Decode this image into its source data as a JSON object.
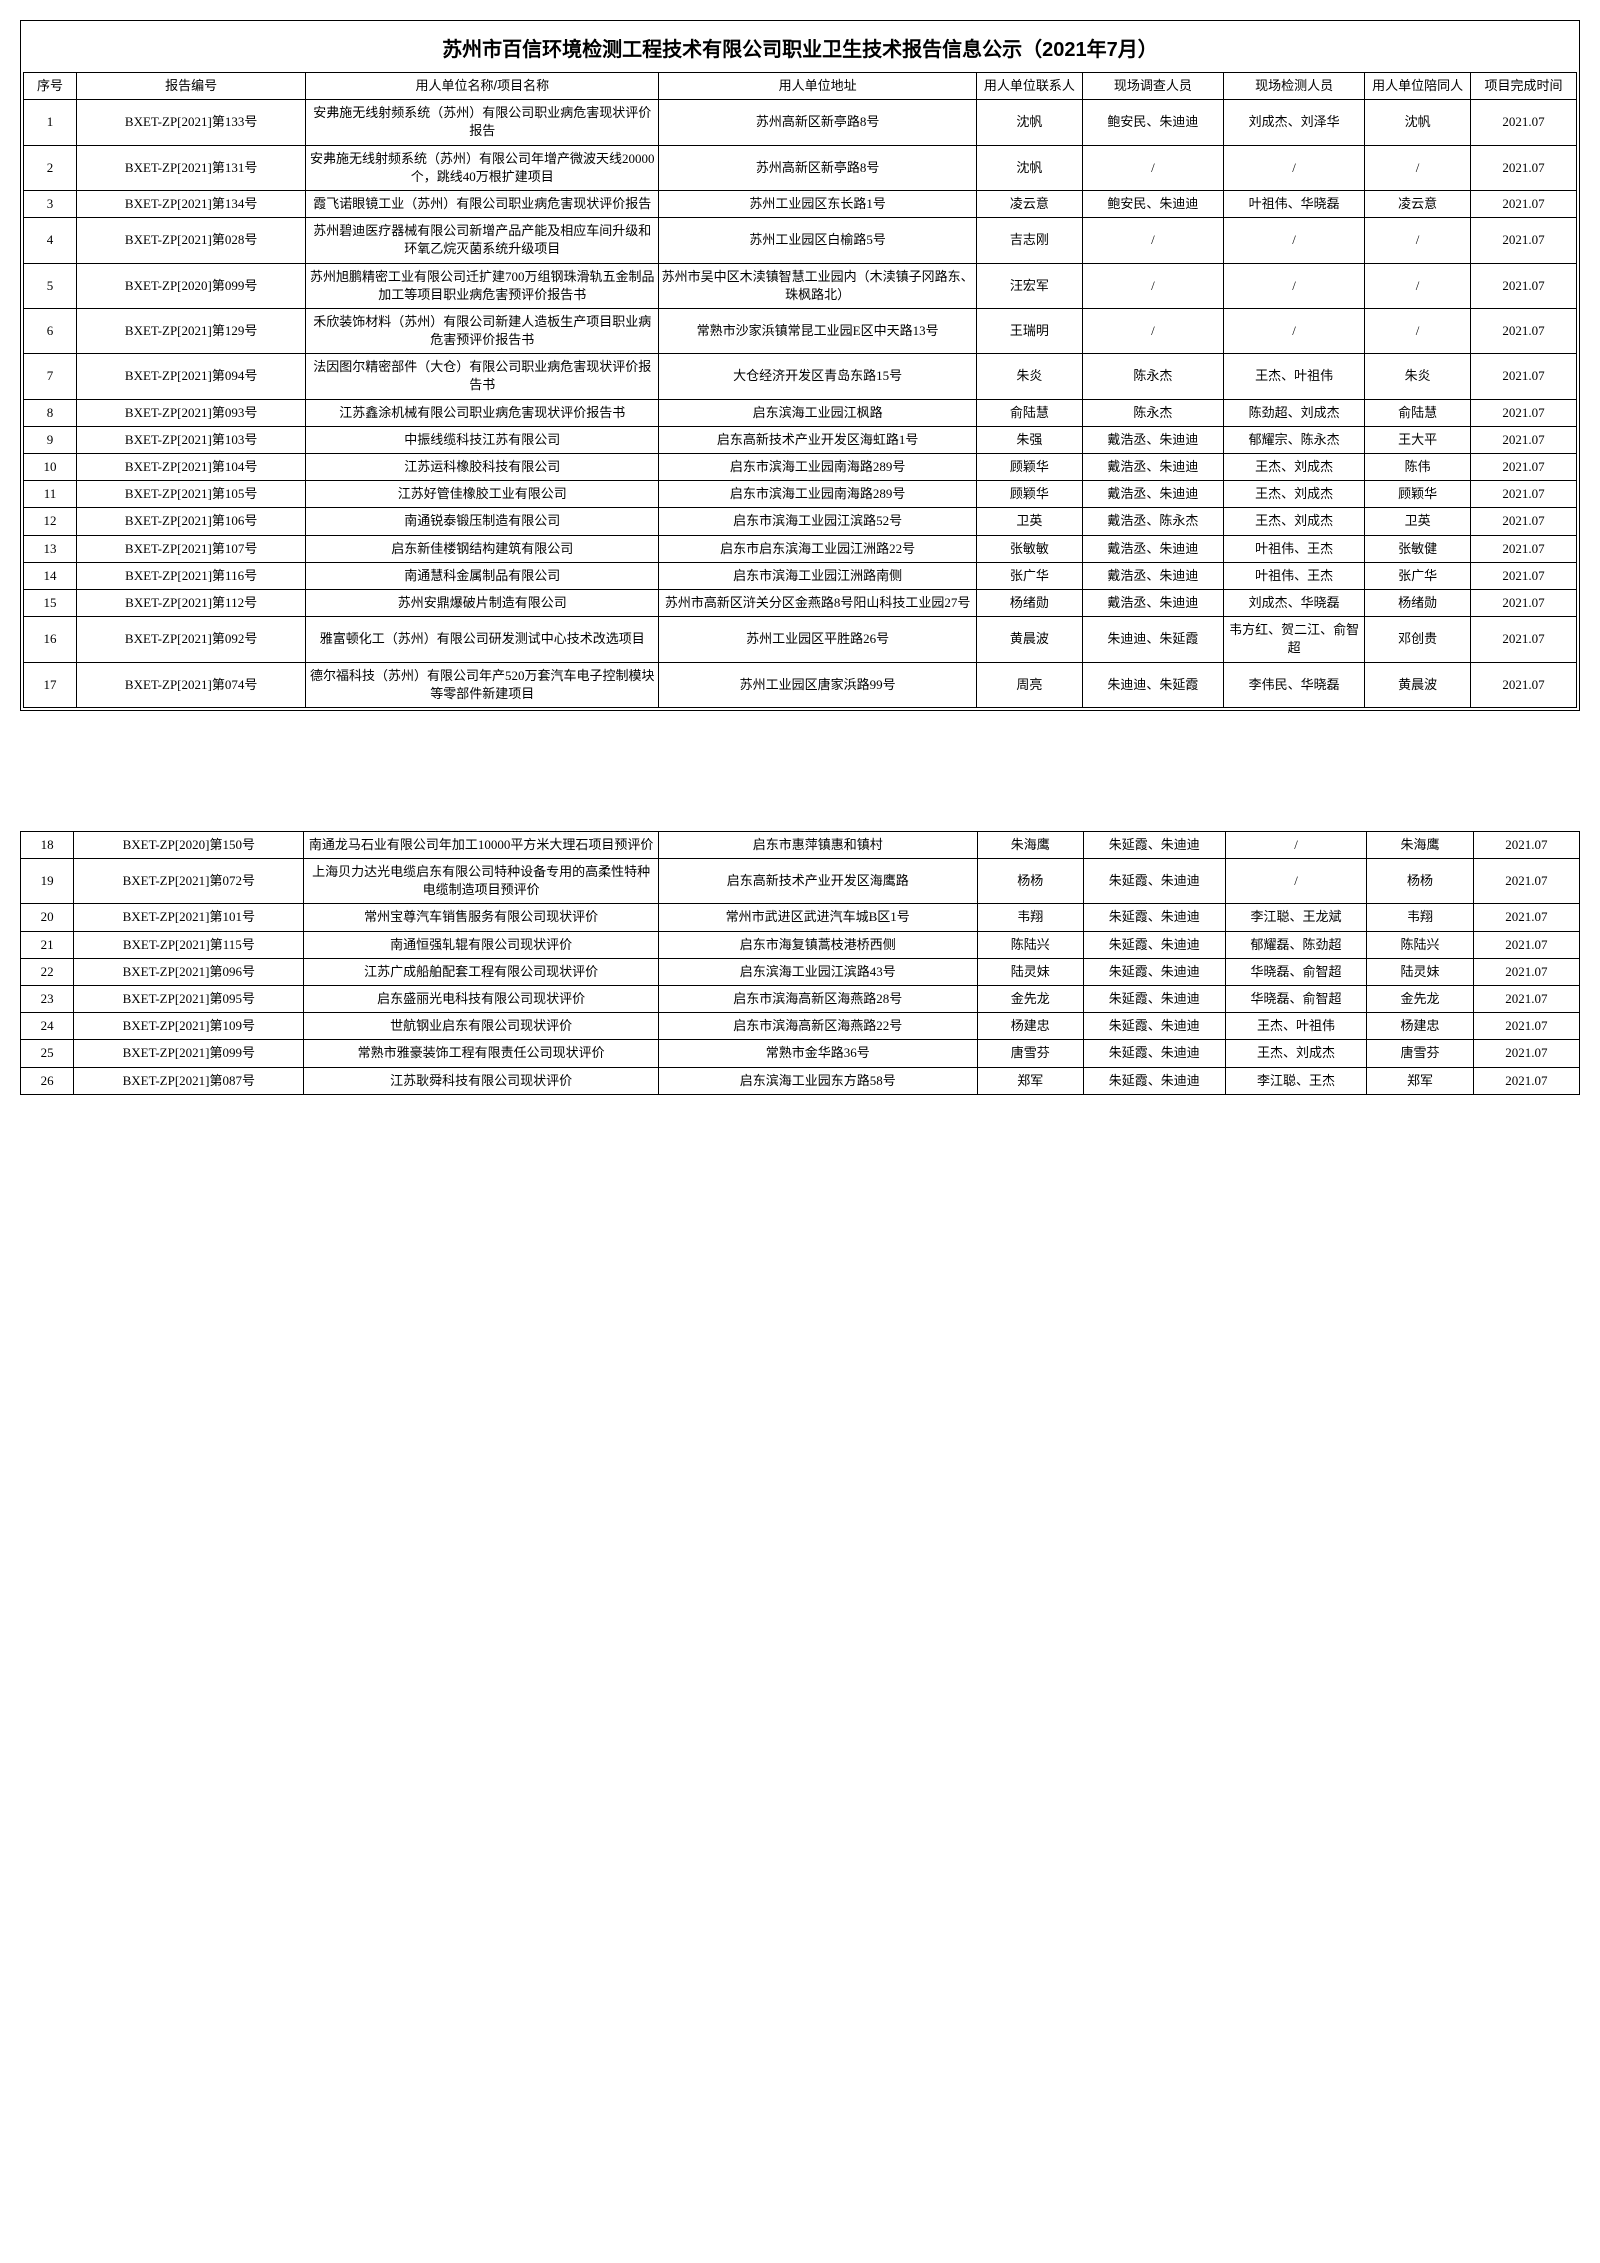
{
  "title": "苏州市百信环境检测工程技术有限公司职业卫生技术报告信息公示（2021年7月）",
  "columns": [
    "序号",
    "报告编号",
    "用人单位名称/项目名称",
    "用人单位地址",
    "用人单位联系人",
    "现场调查人员",
    "现场检测人员",
    "用人单位陪同人",
    "项目完成时间"
  ],
  "section1_rows": [
    {
      "seq": "1",
      "report": "BXET-ZP[2021]第133号",
      "project": "安弗施无线射频系统（苏州）有限公司职业病危害现状评价报告",
      "address": "苏州高新区新亭路8号",
      "contact": "沈帆",
      "survey": "鲍安民、朱迪迪",
      "inspect": "刘成杰、刘泽华",
      "accompany": "沈帆",
      "date": "2021.07"
    },
    {
      "seq": "2",
      "report": "BXET-ZP[2021]第131号",
      "project": "安弗施无线射频系统（苏州）有限公司年增产微波天线20000个，跳线40万根扩建项目",
      "address": "苏州高新区新亭路8号",
      "contact": "沈帆",
      "survey": "/",
      "inspect": "/",
      "accompany": "/",
      "date": "2021.07"
    },
    {
      "seq": "3",
      "report": "BXET-ZP[2021]第134号",
      "project": "霞飞诺眼镜工业（苏州）有限公司职业病危害现状评价报告",
      "address": "苏州工业园区东长路1号",
      "contact": "凌云意",
      "survey": "鲍安民、朱迪迪",
      "inspect": "叶祖伟、华晓磊",
      "accompany": "凌云意",
      "date": "2021.07"
    },
    {
      "seq": "4",
      "report": "BXET-ZP[2021]第028号",
      "project": "苏州碧迪医疗器械有限公司新增产品产能及相应车间升级和环氧乙烷灭菌系统升级项目",
      "address": "苏州工业园区白榆路5号",
      "contact": "吉志刚",
      "survey": "/",
      "inspect": "/",
      "accompany": "/",
      "date": "2021.07"
    },
    {
      "seq": "5",
      "report": "BXET-ZP[2020]第099号",
      "project": "苏州旭鹏精密工业有限公司迁扩建700万组钢珠滑轨五金制品加工等项目职业病危害预评价报告书",
      "address": "苏州市吴中区木渎镇智慧工业园内（木渎镇子冈路东、珠枫路北）",
      "contact": "汪宏军",
      "survey": "/",
      "inspect": "/",
      "accompany": "/",
      "date": "2021.07"
    },
    {
      "seq": "6",
      "report": "BXET-ZP[2021]第129号",
      "project": "禾欣装饰材料（苏州）有限公司新建人造板生产项目职业病危害预评价报告书",
      "address": "常熟市沙家浜镇常昆工业园E区中天路13号",
      "contact": "王瑞明",
      "survey": "/",
      "inspect": "/",
      "accompany": "/",
      "date": "2021.07"
    },
    {
      "seq": "7",
      "report": "BXET-ZP[2021]第094号",
      "project": "法因图尔精密部件（大仓）有限公司职业病危害现状评价报告书",
      "address": "大仓经济开发区青岛东路15号",
      "contact": "朱炎",
      "survey": "陈永杰",
      "inspect": "王杰、叶祖伟",
      "accompany": "朱炎",
      "date": "2021.07"
    },
    {
      "seq": "8",
      "report": "BXET-ZP[2021]第093号",
      "project": "江苏鑫涂机械有限公司职业病危害现状评价报告书",
      "address": "启东滨海工业园江枫路",
      "contact": "俞陆慧",
      "survey": "陈永杰",
      "inspect": "陈劲超、刘成杰",
      "accompany": "俞陆慧",
      "date": "2021.07"
    },
    {
      "seq": "9",
      "report": "BXET-ZP[2021]第103号",
      "project": "中振线缆科技江苏有限公司",
      "address": "启东高新技术产业开发区海虹路1号",
      "contact": "朱强",
      "survey": "戴浩丞、朱迪迪",
      "inspect": "郁耀宗、陈永杰",
      "accompany": "王大平",
      "date": "2021.07"
    },
    {
      "seq": "10",
      "report": "BXET-ZP[2021]第104号",
      "project": "江苏运科橡胶科技有限公司",
      "address": "启东市滨海工业园南海路289号",
      "contact": "顾颖华",
      "survey": "戴浩丞、朱迪迪",
      "inspect": "王杰、刘成杰",
      "accompany": "陈伟",
      "date": "2021.07"
    },
    {
      "seq": "11",
      "report": "BXET-ZP[2021]第105号",
      "project": "江苏好管佳橡胶工业有限公司",
      "address": "启东市滨海工业园南海路289号",
      "contact": "顾颖华",
      "survey": "戴浩丞、朱迪迪",
      "inspect": "王杰、刘成杰",
      "accompany": "顾颖华",
      "date": "2021.07"
    },
    {
      "seq": "12",
      "report": "BXET-ZP[2021]第106号",
      "project": "南通锐泰锻压制造有限公司",
      "address": "启东市滨海工业园江滨路52号",
      "contact": "卫英",
      "survey": "戴浩丞、陈永杰",
      "inspect": "王杰、刘成杰",
      "accompany": "卫英",
      "date": "2021.07"
    },
    {
      "seq": "13",
      "report": "BXET-ZP[2021]第107号",
      "project": "启东新佳楼钢结构建筑有限公司",
      "address": "启东市启东滨海工业园江洲路22号",
      "contact": "张敏敏",
      "survey": "戴浩丞、朱迪迪",
      "inspect": "叶祖伟、王杰",
      "accompany": "张敏健",
      "date": "2021.07"
    },
    {
      "seq": "14",
      "report": "BXET-ZP[2021]第116号",
      "project": "南通慧科金属制品有限公司",
      "address": "启东市滨海工业园江洲路南侧",
      "contact": "张广华",
      "survey": "戴浩丞、朱迪迪",
      "inspect": "叶祖伟、王杰",
      "accompany": "张广华",
      "date": "2021.07"
    },
    {
      "seq": "15",
      "report": "BXET-ZP[2021]第112号",
      "project": "苏州安鼎爆破片制造有限公司",
      "address": "苏州市高新区浒关分区金燕路8号阳山科技工业园27号",
      "contact": "杨绪勋",
      "survey": "戴浩丞、朱迪迪",
      "inspect": "刘成杰、华晓磊",
      "accompany": "杨绪勋",
      "date": "2021.07"
    },
    {
      "seq": "16",
      "report": "BXET-ZP[2021]第092号",
      "project": "雅富顿化工（苏州）有限公司研发测试中心技术改选项目",
      "address": "苏州工业园区平胜路26号",
      "contact": "黄晨波",
      "survey": "朱迪迪、朱延霞",
      "inspect": "韦方红、贺二江、俞智超",
      "accompany": "邓创贵",
      "date": "2021.07"
    },
    {
      "seq": "17",
      "report": "BXET-ZP[2021]第074号",
      "project": "德尔福科技（苏州）有限公司年产520万套汽车电子控制模块等零部件新建项目",
      "address": "苏州工业园区唐家浜路99号",
      "contact": "周亮",
      "survey": "朱迪迪、朱延霞",
      "inspect": "李伟民、华晓磊",
      "accompany": "黄晨波",
      "date": "2021.07"
    }
  ],
  "section2_rows": [
    {
      "seq": "18",
      "report": "BXET-ZP[2020]第150号",
      "project": "南通龙马石业有限公司年加工10000平方米大理石项目预评价",
      "address": "启东市惠萍镇惠和镇村",
      "contact": "朱海鹰",
      "survey": "朱延霞、朱迪迪",
      "inspect": "/",
      "accompany": "朱海鹰",
      "date": "2021.07"
    },
    {
      "seq": "19",
      "report": "BXET-ZP[2021]第072号",
      "project": "上海贝力达光电缆启东有限公司特种设备专用的高柔性特种电缆制造项目预评价",
      "address": "启东高新技术产业开发区海鹰路",
      "contact": "杨杨",
      "survey": "朱延霞、朱迪迪",
      "inspect": "/",
      "accompany": "杨杨",
      "date": "2021.07"
    },
    {
      "seq": "20",
      "report": "BXET-ZP[2021]第101号",
      "project": "常州宝尊汽车销售服务有限公司现状评价",
      "address": "常州市武进区武进汽车城B区1号",
      "contact": "韦翔",
      "survey": "朱延霞、朱迪迪",
      "inspect": "李江聪、王龙斌",
      "accompany": "韦翔",
      "date": "2021.07"
    },
    {
      "seq": "21",
      "report": "BXET-ZP[2021]第115号",
      "project": "南通恒强轧辊有限公司现状评价",
      "address": "启东市海复镇蒿枝港桥西侧",
      "contact": "陈陆兴",
      "survey": "朱延霞、朱迪迪",
      "inspect": "郁耀磊、陈劲超",
      "accompany": "陈陆兴",
      "date": "2021.07"
    },
    {
      "seq": "22",
      "report": "BXET-ZP[2021]第096号",
      "project": "江苏广成船舶配套工程有限公司现状评价",
      "address": "启东滨海工业园江滨路43号",
      "contact": "陆灵妹",
      "survey": "朱延霞、朱迪迪",
      "inspect": "华晓磊、俞智超",
      "accompany": "陆灵妹",
      "date": "2021.07"
    },
    {
      "seq": "23",
      "report": "BXET-ZP[2021]第095号",
      "project": "启东盛丽光电科技有限公司现状评价",
      "address": "启东市滨海高新区海燕路28号",
      "contact": "金先龙",
      "survey": "朱延霞、朱迪迪",
      "inspect": "华晓磊、俞智超",
      "accompany": "金先龙",
      "date": "2021.07"
    },
    {
      "seq": "24",
      "report": "BXET-ZP[2021]第109号",
      "project": "世航钢业启东有限公司现状评价",
      "address": "启东市滨海高新区海燕路22号",
      "contact": "杨建忠",
      "survey": "朱延霞、朱迪迪",
      "inspect": "王杰、叶祖伟",
      "accompany": "杨建忠",
      "date": "2021.07"
    },
    {
      "seq": "25",
      "report": "BXET-ZP[2021]第099号",
      "project": "常熟市雅豪装饰工程有限责任公司现状评价",
      "address": "常熟市金华路36号",
      "contact": "唐雪芬",
      "survey": "朱延霞、朱迪迪",
      "inspect": "王杰、刘成杰",
      "accompany": "唐雪芬",
      "date": "2021.07"
    },
    {
      "seq": "26",
      "report": "BXET-ZP[2021]第087号",
      "project": "江苏耿舜科技有限公司现状评价",
      "address": "启东滨海工业园东方路58号",
      "contact": "郑军",
      "survey": "朱延霞、朱迪迪",
      "inspect": "李江聪、王杰",
      "accompany": "郑军",
      "date": "2021.07"
    }
  ]
}
